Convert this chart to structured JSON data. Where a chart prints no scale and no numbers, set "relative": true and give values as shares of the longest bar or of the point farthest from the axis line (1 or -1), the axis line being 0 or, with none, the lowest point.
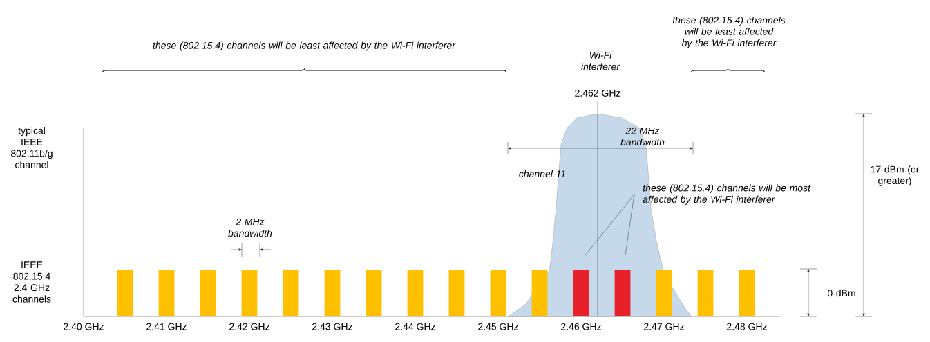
{
  "chart_data": {
    "type": "bar",
    "relative": true,
    "series": [
      {
        "type": "area",
        "color": "#c6d9ea",
        "x": [
          2.4512,
          2.4533,
          2.4549,
          2.4562,
          2.4566,
          2.457,
          2.4573,
          2.4576,
          2.4583,
          2.4595,
          2.462,
          2.4649,
          2.467,
          2.4678,
          2.4681,
          2.4684,
          2.4691,
          2.4699,
          2.4712,
          2.4724,
          2.4733
        ],
        "values": [
          0,
          0.06,
          null,
          0.23,
          0.37,
          0.54,
          0.71,
          0.85,
          0.93,
          0.98,
          1,
          0.98,
          0.93,
          0.85,
          0.71,
          0.54,
          0.37,
          0.23,
          0.13,
          0.05,
          0
        ]
      },
      {
        "x": [
          2.405,
          2.41,
          2.415,
          2.42,
          2.425,
          2.43,
          2.435,
          2.44,
          2.445,
          2.45,
          2.455,
          2.46,
          2.465,
          2.47,
          2.475,
          2.48
        ],
        "values": [
          0.23,
          0.23,
          0.23,
          0.23,
          0.23,
          0.23,
          0.23,
          0.23,
          0.23,
          0.23,
          0.23,
          0.23,
          0.23,
          0.23,
          0.23,
          0.23
        ],
        "colors": [
          "#ffc000",
          "#ffc000",
          "#ffc000",
          "#ffc000",
          "#ffc000",
          "#ffc000",
          "#ffc000",
          "#ffc000",
          "#ffc000",
          "#ffc000",
          "#ffc000",
          "#e8202a",
          "#e8202a",
          "#ffc000",
          "#ffc000",
          "#ffc000"
        ]
      }
    ],
    "xlim": [
      2.4,
      2.484
    ],
    "xticks": [
      {
        "value": 2.4,
        "label": "2.40 GHz"
      },
      {
        "value": 2.41,
        "label": "2.41 GHz"
      },
      {
        "value": 2.42,
        "label": "2.42 GHz"
      },
      {
        "value": 2.43,
        "label": "2.43 GHz"
      },
      {
        "value": 2.44,
        "label": "2.44 GHz"
      },
      {
        "value": 2.45,
        "label": "2.45 GHz"
      },
      {
        "value": 2.46,
        "label": "2.46 GHz"
      },
      {
        "value": 2.47,
        "label": "2.47 GHz"
      },
      {
        "value": 2.48,
        "label": "2.48 GHz"
      }
    ],
    "ref_lines": [
      {
        "axis": "x",
        "value": 2.462,
        "label": "2.462 GHz"
      }
    ],
    "annotations": [
      "these (802.15.4) channels will be least affected by the Wi-Fi interferer",
      "these (802.15.4) channels will be least affected by the Wi-Fi interferer",
      "Wi-Fi interferer",
      "22 MHz bandwidth",
      "channel 11",
      "these (802.15.4) channels will be most affected by the Wi-Fi interferer",
      "2 MHz bandwidth",
      "typical IEEE 802.11b/g channel",
      "IEEE 802.15.4 2.4 GHz channels",
      "17 dBm (or greater)",
      "0 dBm"
    ]
  }
}
